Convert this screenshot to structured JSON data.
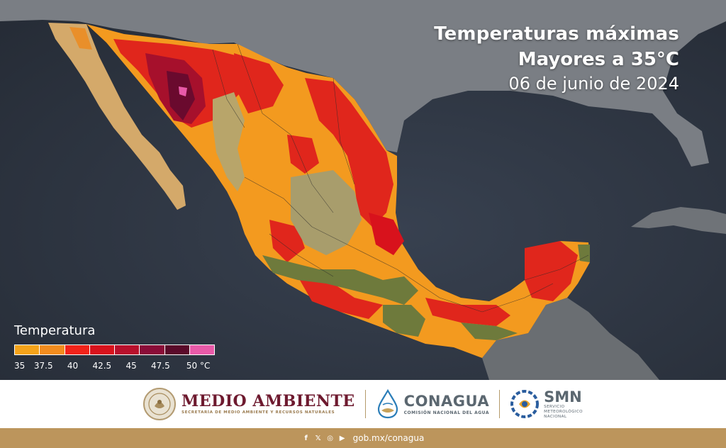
{
  "title": {
    "line1": "Temperaturas máximas",
    "line2": "Mayores a 35°C",
    "date": "06 de junio de 2024"
  },
  "legend": {
    "title": "Temperatura",
    "colors": [
      "#f5a31a",
      "#f28c1e",
      "#f2231a",
      "#d8121c",
      "#b8102c",
      "#8a0c38",
      "#5a0a2a",
      "#e85aa8"
    ],
    "labels": [
      "35",
      "37.5",
      "40",
      "42.5",
      "45",
      "47.5",
      "50 °C"
    ]
  },
  "logos": {
    "medio_ambiente": {
      "name": "MEDIO AMBIENTE",
      "subtitle": "SECRETARÍA DE MEDIO AMBIENTE Y RECURSOS NATURALES"
    },
    "conagua": {
      "name": "CONAGUA",
      "subtitle": "COMISIÓN NACIONAL DEL AGUA"
    },
    "smn": {
      "name": "SMN",
      "subtitle_lines": [
        "SERVICIO",
        "METEOROLÓGICO",
        "NACIONAL"
      ]
    }
  },
  "footer": {
    "social_icons": [
      "facebook-icon",
      "x-icon",
      "instagram-icon",
      "youtube-icon"
    ],
    "url": "gob.mx/conagua"
  },
  "colors": {
    "footer_gold": "#bc955c",
    "medio_ambiente_wine": "#6e1a2f",
    "ocean": "#2e3440"
  }
}
